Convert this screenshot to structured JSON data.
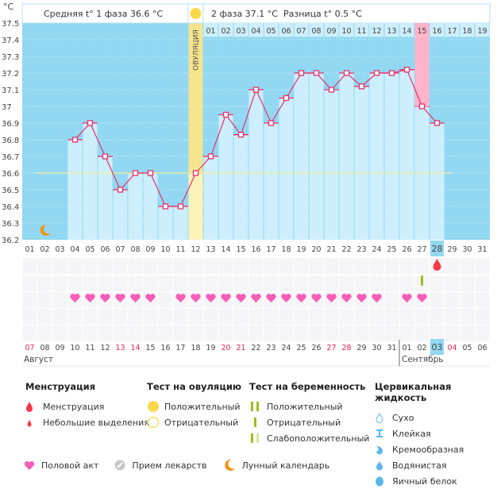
{
  "chart_data": {
    "type": "line",
    "title": "",
    "unit_label": "°C",
    "ylim": [
      36.2,
      37.5
    ],
    "yticks": [
      "37.5",
      "37.4",
      "37.3",
      "37.2",
      "37.1",
      "37",
      "36.9",
      "36.8",
      "36.7",
      "36.6",
      "36.5",
      "36.4",
      "36.3",
      "36.2"
    ],
    "cycle_days": [
      "01",
      "02",
      "03",
      "04",
      "05",
      "06",
      "07",
      "08",
      "09",
      "10",
      "11",
      "12",
      "13",
      "14",
      "15",
      "16",
      "17",
      "18",
      "19",
      "20",
      "21",
      "22",
      "23",
      "24",
      "25",
      "26",
      "27",
      "28",
      "29",
      "30",
      "31"
    ],
    "today_cycle_day": "28",
    "temperatures": [
      null,
      null,
      null,
      36.8,
      36.9,
      36.7,
      36.5,
      36.6,
      36.6,
      36.4,
      36.4,
      36.6,
      36.7,
      36.95,
      36.83,
      37.1,
      36.9,
      37.05,
      37.2,
      37.2,
      37.1,
      37.2,
      37.12,
      37.2,
      37.2,
      37.22,
      37.0,
      36.9,
      null,
      null,
      null
    ],
    "coverline": 36.6,
    "ovulation_day": "12",
    "ovulation_label": "ОВУЛЯЦИЯ",
    "phase2_days": [
      "01",
      "02",
      "03",
      "04",
      "05",
      "06",
      "07",
      "08",
      "09",
      "10",
      "11",
      "12",
      "13",
      "14",
      "15",
      "16",
      "17",
      "18",
      "19"
    ],
    "highlighted_phase2_day": "15",
    "colors": {
      "plot_bg": "#92d8f2",
      "bar_fill": "#cdeefc",
      "line": "#e8306a",
      "ovulation": "#fdf3b8",
      "ovulation_top": "#f5e38a",
      "highlight_pink": "#ffb3c8",
      "coverline": "#f7ef9a",
      "weekend_red": "#e3245a",
      "today_box": "#92d8f2",
      "heart": "#f75cb8",
      "drop": "#f43a4a",
      "test_green": "#9bc01c",
      "sun": "#fdd84a",
      "moon": "#f4930e"
    }
  },
  "summary": {
    "phase1": "Средняя t° 1 фаза 36.6 °C",
    "phase2": "2 фаза 37.1 °C",
    "diff": "Разница t° 0.5 °C"
  },
  "markers": {
    "moon_day": "02",
    "menstruation_day": "28",
    "pregnancy_negative_day": "27",
    "intercourse_days": [
      "04",
      "05",
      "06",
      "07",
      "08",
      "09",
      "11",
      "12",
      "13",
      "14",
      "15",
      "16",
      "17",
      "18",
      "19",
      "20",
      "21",
      "22",
      "23",
      "24",
      "26",
      "27"
    ]
  },
  "calendar": {
    "dates": [
      "07",
      "08",
      "09",
      "10",
      "11",
      "12",
      "13",
      "14",
      "15",
      "16",
      "17",
      "18",
      "19",
      "20",
      "21",
      "22",
      "23",
      "24",
      "25",
      "26",
      "27",
      "28",
      "29",
      "30",
      "31",
      "01",
      "02",
      "03",
      "04",
      "05",
      "06"
    ],
    "weekend_dates_idx": [
      0,
      6,
      7,
      13,
      14,
      20,
      21,
      28
    ],
    "today_idx": 27,
    "month1": "Август",
    "month2": "Сентябрь",
    "month2_start_idx": 25
  },
  "legend": {
    "menstruation": {
      "title": "Менструация",
      "items": [
        "Менструация",
        "Небольшие выделения"
      ]
    },
    "ovulation_test": {
      "title": "Тест на овуляцию",
      "items": [
        "Положительный",
        "Отрицательный"
      ]
    },
    "pregnancy_test": {
      "title": "Тест на беременность",
      "items": [
        "Положительный",
        "Отрицательный",
        "Слабоположительный"
      ]
    },
    "cervical_fluid": {
      "title": "Цервикальная жидкость",
      "items": [
        "Сухо",
        "Клейкая",
        "Кремообразная",
        "Водянистая",
        "Яичный белок"
      ]
    },
    "bottom": [
      "Половой акт",
      "Прием лекарств",
      "Лунный календарь"
    ]
  }
}
